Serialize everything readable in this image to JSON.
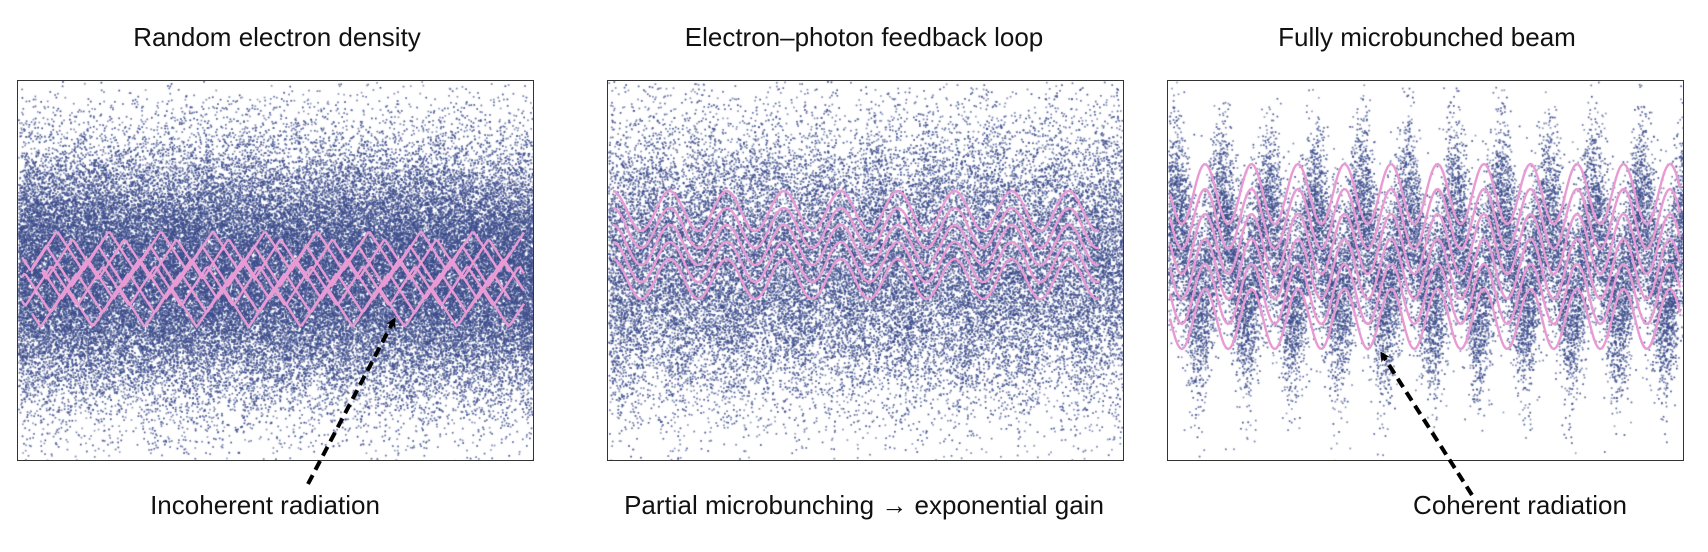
{
  "panels": [
    {
      "title": "Random electron density",
      "label": "Incoherent radiation"
    },
    {
      "title": "Electron–photon feedback loop",
      "label": "Partial microbunching → exponential gain"
    },
    {
      "title": "Fully microbunched beam",
      "label": "Coherent radiation"
    }
  ],
  "colors": {
    "particles": "#3d4d8c",
    "waves": "#e79ad3",
    "arrow": "#000000",
    "frame": "#333333"
  }
}
